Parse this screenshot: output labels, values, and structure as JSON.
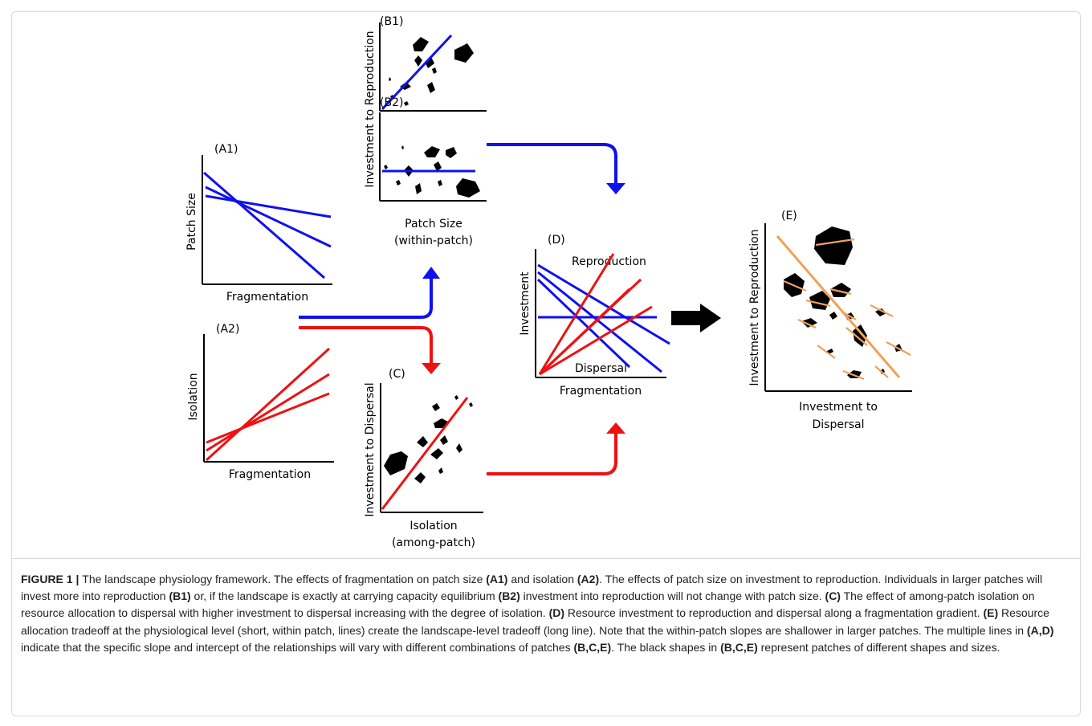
{
  "panels": {
    "a1": {
      "label": "(A1)",
      "ylabel": "Patch Size",
      "xlabel": "Fragmentation"
    },
    "a2": {
      "label": "(A2)",
      "ylabel": "Isolation",
      "xlabel": "Fragmentation"
    },
    "b1": {
      "label": "(B1)"
    },
    "b2": {
      "label": "(B2)"
    },
    "b": {
      "ylabel": "Investment to Reproduction",
      "xlabel_line1": "Patch Size",
      "xlabel_line2": "(within-patch)"
    },
    "c": {
      "label": "(C)",
      "ylabel": "Investment to Dispersal",
      "xlabel_line1": "Isolation",
      "xlabel_line2": "(among-patch)"
    },
    "d": {
      "label": "(D)",
      "ylabel": "Investment",
      "xlabel": "Fragmentation",
      "top_text": "Reproduction",
      "bottom_text": "Dispersal"
    },
    "e": {
      "label": "(E)",
      "ylabel": "Investment to Reproduction",
      "xlabel_line1": "Investment to",
      "xlabel_line2": "Dispersal"
    }
  },
  "colors": {
    "reproduction_blue": "#1010ee",
    "dispersal_red": "#ee1111",
    "tradeoff_orange": "#f0a05a",
    "patch_black": "#000000"
  },
  "caption": [
    {
      "t": "FIGURE 1 | ",
      "b": true
    },
    {
      "t": "The landscape physiology framework. The effects of fragmentation on patch size ",
      "b": false
    },
    {
      "t": "(A1)",
      "b": true
    },
    {
      "t": " and isolation ",
      "b": false
    },
    {
      "t": "(A2)",
      "b": true
    },
    {
      "t": ". The effects of patch size on investment to reproduction. Individuals in larger patches will invest more into reproduction ",
      "b": false
    },
    {
      "t": "(B1)",
      "b": true
    },
    {
      "t": " or, if the landscape is exactly at carrying capacity equilibrium ",
      "b": false
    },
    {
      "t": "(B2)",
      "b": true
    },
    {
      "t": " investment into reproduction will not change with patch size. ",
      "b": false
    },
    {
      "t": "(C)",
      "b": true
    },
    {
      "t": " The effect of among-patch isolation on resource allocation to dispersal with higher investment to dispersal increasing with the degree of isolation. ",
      "b": false
    },
    {
      "t": "(D)",
      "b": true
    },
    {
      "t": " Resource investment to reproduction and dispersal along a fragmentation gradient. ",
      "b": false
    },
    {
      "t": "(E)",
      "b": true
    },
    {
      "t": " Resource allocation tradeoff at the physiological level (short, within patch, lines) create the landscape-level tradeoff (long line). Note that the within-patch slopes are shallower in larger patches. The multiple lines in ",
      "b": false
    },
    {
      "t": "(A,D)",
      "b": true
    },
    {
      "t": " indicate that the specific slope and intercept of the relationships will vary with different combinations of patches ",
      "b": false
    },
    {
      "t": "(B,C,E)",
      "b": true
    },
    {
      "t": ". The black shapes in ",
      "b": false
    },
    {
      "t": "(B,C,E)",
      "b": true
    },
    {
      "t": " represent patches of different shapes and sizes.",
      "b": false
    }
  ]
}
